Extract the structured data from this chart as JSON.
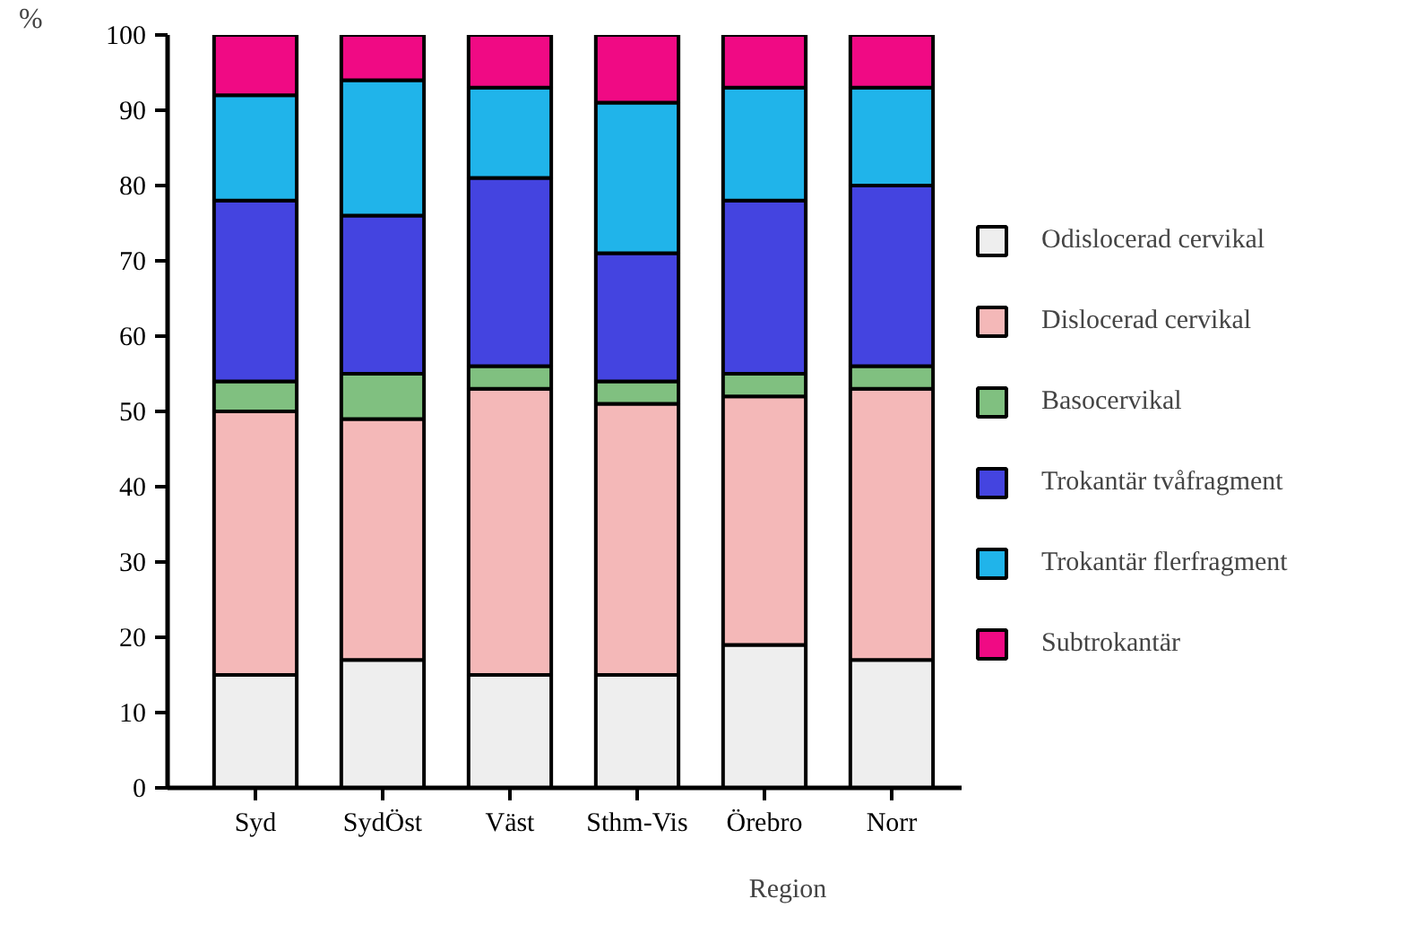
{
  "chart_data": {
    "type": "bar",
    "stacked": true,
    "xlabel": "Region",
    "ylabel": "%",
    "categories": [
      "Syd",
      "SydÖst",
      "Väst",
      "Sthm-Vis",
      "Örebro",
      "Norr"
    ],
    "series": [
      {
        "name": "Odislocerad cervikal",
        "color": "#eeeeee",
        "values": [
          15,
          17,
          15,
          15,
          19,
          17
        ]
      },
      {
        "name": "Dislocerad cervikal",
        "color": "#f4b8b8",
        "values": [
          35,
          32,
          38,
          36,
          33,
          36
        ]
      },
      {
        "name": "Basocervikal",
        "color": "#80c080",
        "values": [
          4,
          6,
          3,
          3,
          3,
          3
        ]
      },
      {
        "name": "Trokantär tvåfragment",
        "color": "#4444e0",
        "values": [
          24,
          21,
          25,
          17,
          23,
          24
        ]
      },
      {
        "name": "Trokantär flerfragment",
        "color": "#20b4ea",
        "values": [
          14,
          18,
          12,
          20,
          15,
          13
        ]
      },
      {
        "name": "Subtrokantär",
        "color": "#f00a84",
        "values": [
          8,
          6,
          7,
          9,
          7,
          7
        ]
      }
    ],
    "ylim": [
      0,
      100
    ],
    "yticks": [
      0,
      10,
      20,
      30,
      40,
      50,
      60,
      70,
      80,
      90,
      100
    ],
    "grid": false,
    "legend": "right"
  }
}
